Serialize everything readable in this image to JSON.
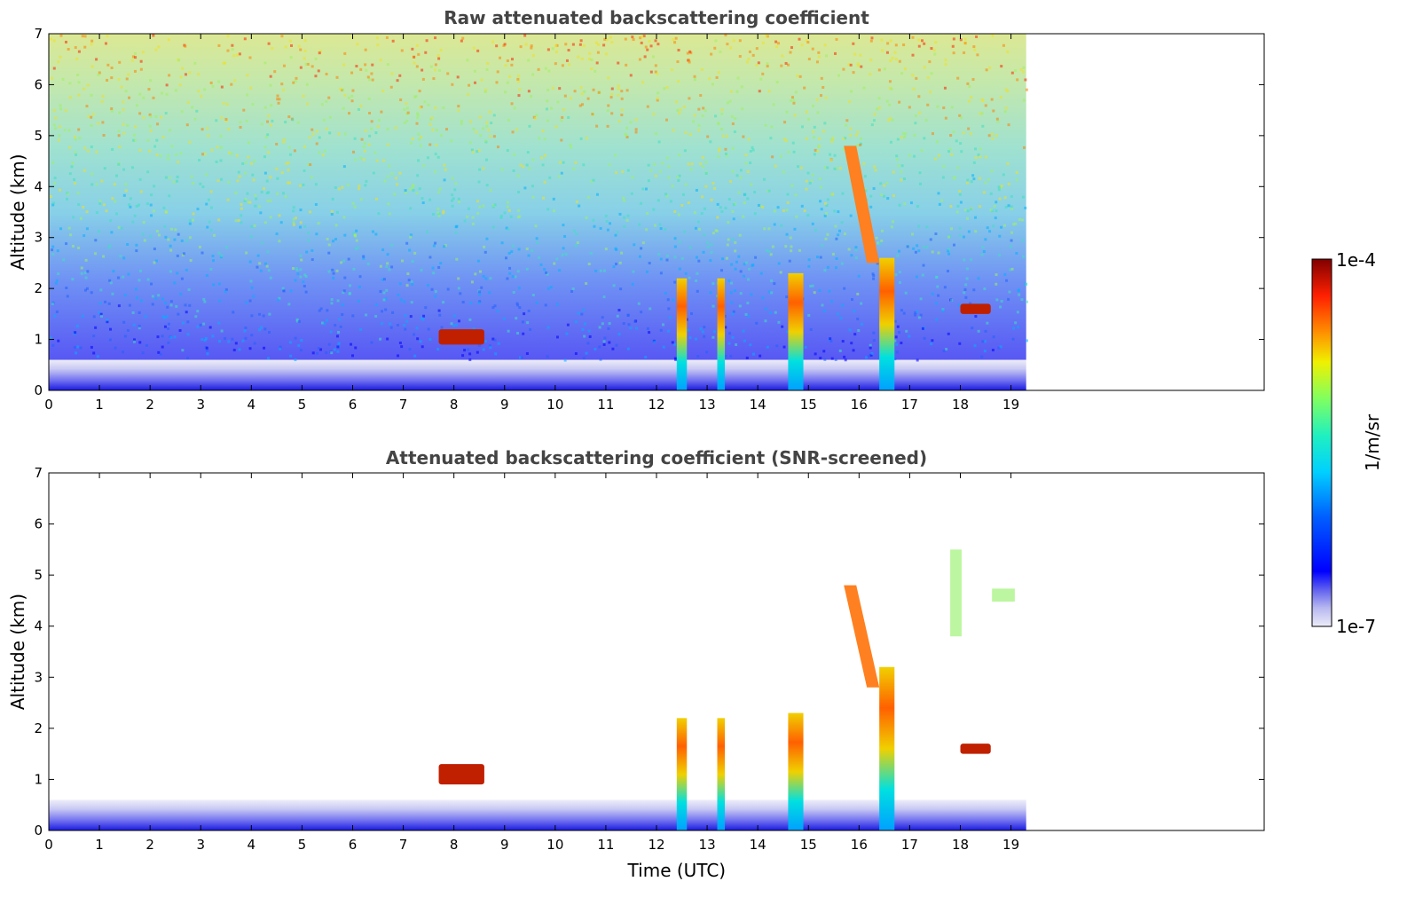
{
  "figure": {
    "colorbar": {
      "label": "1/m/sr",
      "max_label": "1e-4",
      "min_label": "1e-7",
      "vmin": 1e-07,
      "vmax": 0.0001,
      "scale": "log",
      "colormap": "jet with light-lavender low end"
    }
  },
  "chart_data": [
    {
      "type": "heatmap",
      "title": "Raw attenuated backscattering coefficient",
      "xlabel": "",
      "ylabel": "Altitude (km)",
      "xlim": [
        0,
        24
      ],
      "ylim": [
        0,
        7
      ],
      "xticks": [
        "0",
        "1",
        "2",
        "3",
        "4",
        "5",
        "6",
        "7",
        "8",
        "9",
        "10",
        "11",
        "12",
        "13",
        "14",
        "15",
        "16",
        "17",
        "18",
        "19"
      ],
      "yticks": [
        "0",
        "1",
        "2",
        "3",
        "4",
        "5",
        "6",
        "7"
      ],
      "data_extent_x": [
        0,
        19.3
      ],
      "grid": false,
      "features": [
        {
          "kind": "surface_layer",
          "x": [
            0,
            19.3
          ],
          "y": [
            0,
            0.6
          ],
          "level": "low"
        },
        {
          "kind": "noise_background",
          "x": [
            0,
            19.3
          ],
          "y": [
            0.6,
            7
          ],
          "level": "increasing_with_altitude"
        },
        {
          "kind": "cloud_column",
          "x": [
            12.4,
            12.6
          ],
          "y": [
            0,
            2.2
          ]
        },
        {
          "kind": "cloud_column",
          "x": [
            13.2,
            13.35
          ],
          "y": [
            0,
            2.2
          ]
        },
        {
          "kind": "cloud_column",
          "x": [
            14.6,
            14.9
          ],
          "y": [
            0,
            2.3
          ]
        },
        {
          "kind": "cloud_column",
          "x": [
            16.4,
            16.7
          ],
          "y": [
            0,
            2.6
          ]
        },
        {
          "kind": "cloud_layer",
          "x": [
            7.7,
            8.6
          ],
          "y": [
            0.9,
            1.2
          ]
        },
        {
          "kind": "cloud_layer",
          "x": [
            18.0,
            18.6
          ],
          "y": [
            1.5,
            1.7
          ]
        },
        {
          "kind": "cloud_streak",
          "x": [
            15.7,
            16.4
          ],
          "y": [
            2.5,
            4.8
          ]
        }
      ]
    },
    {
      "type": "heatmap",
      "title": "Attenuated backscattering coefficient (SNR-screened)",
      "xlabel": "Time (UTC)",
      "ylabel": "Altitude (km)",
      "xlim": [
        0,
        24
      ],
      "ylim": [
        0,
        7
      ],
      "xticks": [
        "0",
        "1",
        "2",
        "3",
        "4",
        "5",
        "6",
        "7",
        "8",
        "9",
        "10",
        "11",
        "12",
        "13",
        "14",
        "15",
        "16",
        "17",
        "18",
        "19"
      ],
      "yticks": [
        "0",
        "1",
        "2",
        "3",
        "4",
        "5",
        "6",
        "7"
      ],
      "data_extent_x": [
        0,
        19.3
      ],
      "grid": false,
      "features": [
        {
          "kind": "surface_layer",
          "x": [
            0,
            19.3
          ],
          "y": [
            0,
            0.6
          ],
          "level": "low"
        },
        {
          "kind": "cloud_column",
          "x": [
            12.4,
            12.6
          ],
          "y": [
            0,
            2.2
          ]
        },
        {
          "kind": "cloud_column",
          "x": [
            13.2,
            13.35
          ],
          "y": [
            0,
            2.2
          ]
        },
        {
          "kind": "cloud_column",
          "x": [
            14.6,
            14.9
          ],
          "y": [
            0,
            2.3
          ]
        },
        {
          "kind": "cloud_column",
          "x": [
            16.4,
            16.7
          ],
          "y": [
            0,
            3.2
          ]
        },
        {
          "kind": "cloud_layer",
          "x": [
            7.7,
            8.6
          ],
          "y": [
            0.9,
            1.3
          ]
        },
        {
          "kind": "cloud_layer",
          "x": [
            18.0,
            18.6
          ],
          "y": [
            1.5,
            1.7
          ]
        },
        {
          "kind": "cloud_streak",
          "x": [
            15.7,
            16.4
          ],
          "y": [
            2.8,
            4.8
          ]
        },
        {
          "kind": "cloud_patch",
          "x": [
            17.8,
            19.3
          ],
          "y": [
            3.8,
            5.5
          ]
        }
      ]
    }
  ]
}
